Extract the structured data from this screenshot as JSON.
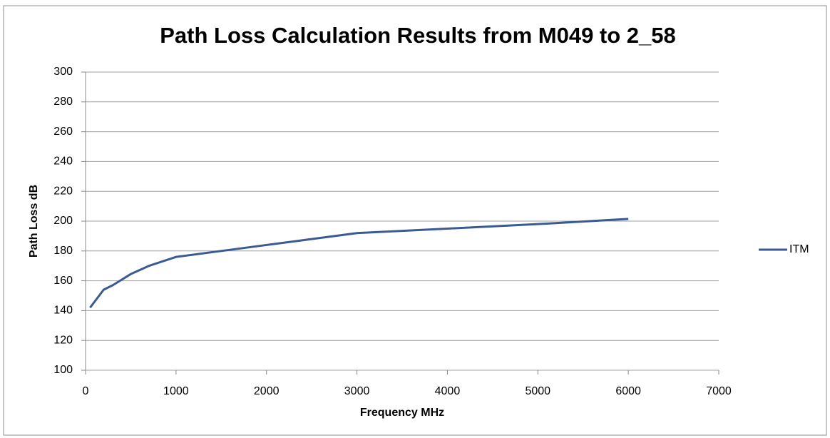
{
  "chart_data": {
    "type": "line",
    "title": "Path Loss Calculation Results from  M049 to  2_58",
    "x_label": "Frequency MHz",
    "y_label": "Path Loss dB",
    "x": [
      50,
      100,
      200,
      300,
      500,
      700,
      1000,
      1500,
      2000,
      3000,
      4000,
      5000,
      6000
    ],
    "series": [
      {
        "name": "ITM",
        "color": "#3a5a94",
        "values": [
          142,
          146,
          154,
          157,
          164.5,
          170,
          176,
          180,
          184,
          192,
          195,
          198,
          201.5
        ]
      }
    ],
    "xlim": [
      0,
      7000
    ],
    "xticks": [
      0,
      1000,
      2000,
      3000,
      4000,
      5000,
      6000,
      7000
    ],
    "ylim": [
      100,
      300
    ],
    "yticks": [
      100,
      120,
      140,
      160,
      180,
      200,
      220,
      240,
      260,
      280,
      300
    ],
    "grid": true,
    "legend": "right"
  }
}
